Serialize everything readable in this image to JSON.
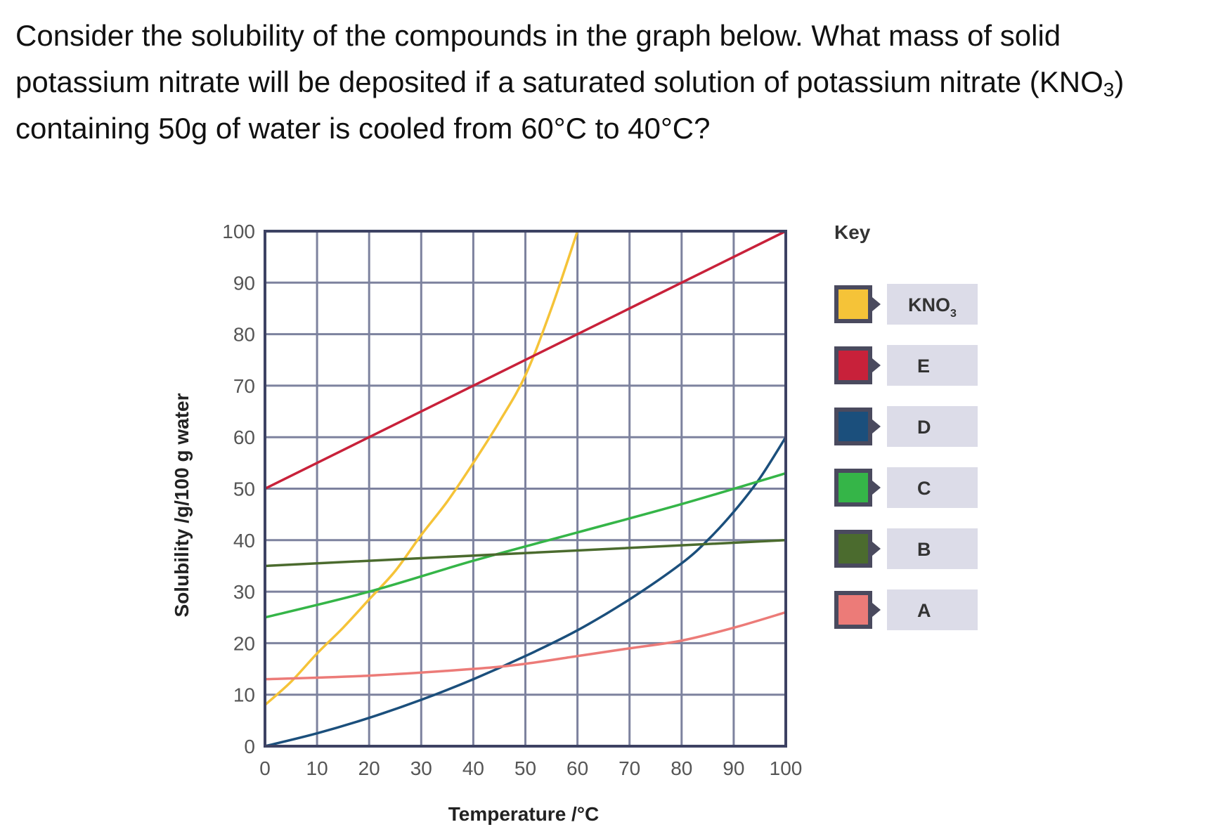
{
  "question": {
    "line1": "Consider the solubility of the compounds in the graph below. What mass of solid",
    "line2a": "potassium nitrate will be deposited if a saturated solution of potassium nitrate (KNO",
    "line2sub": "3",
    "line2b": ")",
    "line3": "containing 50g of water is cooled from 60°C to 40°C?"
  },
  "chart_data": {
    "type": "line",
    "xlabel": "Temperature /°C",
    "ylabel": "Solubility /g/100 g water",
    "xlim": [
      0,
      100
    ],
    "ylim": [
      0,
      100
    ],
    "xticks": [
      "0",
      "10",
      "20",
      "30",
      "40",
      "50",
      "60",
      "70",
      "80",
      "90",
      "100"
    ],
    "yticks": [
      "0",
      "10",
      "20",
      "30",
      "40",
      "50",
      "60",
      "70",
      "80",
      "90",
      "100"
    ],
    "grid": true,
    "legend_title": "Key",
    "legend_position": "right",
    "series": [
      {
        "name": "KNO3",
        "name_main": "KNO",
        "name_sub": "3",
        "color": "#f5c338",
        "points": [
          [
            0,
            8
          ],
          [
            5,
            12.5
          ],
          [
            10,
            18
          ],
          [
            15,
            23
          ],
          [
            20,
            28.5
          ],
          [
            25,
            34
          ],
          [
            30,
            41
          ],
          [
            35,
            47.5
          ],
          [
            40,
            55
          ],
          [
            45,
            63
          ],
          [
            50,
            72
          ],
          [
            55,
            85
          ],
          [
            60,
            100
          ]
        ]
      },
      {
        "name": "E",
        "color": "#c8213a",
        "points": [
          [
            0,
            50
          ],
          [
            100,
            100
          ]
        ]
      },
      {
        "name": "D",
        "color": "#1b4f7c",
        "points": [
          [
            0,
            0
          ],
          [
            10,
            2.5
          ],
          [
            20,
            5.5
          ],
          [
            30,
            9
          ],
          [
            40,
            13
          ],
          [
            50,
            17.5
          ],
          [
            60,
            22.5
          ],
          [
            70,
            28.5
          ],
          [
            80,
            35.5
          ],
          [
            85,
            40
          ],
          [
            90,
            45.5
          ],
          [
            95,
            52
          ],
          [
            100,
            60
          ]
        ]
      },
      {
        "name": "C",
        "color": "#35b548",
        "points": [
          [
            0,
            25
          ],
          [
            20,
            30
          ],
          [
            40,
            36
          ],
          [
            60,
            41.5
          ],
          [
            80,
            47
          ],
          [
            100,
            53
          ]
        ]
      },
      {
        "name": "B",
        "color": "#4b6b2e",
        "points": [
          [
            0,
            35
          ],
          [
            100,
            40
          ]
        ]
      },
      {
        "name": "A",
        "color": "#ec7b78",
        "points": [
          [
            0,
            13
          ],
          [
            20,
            13.7
          ],
          [
            40,
            15
          ],
          [
            50,
            16
          ],
          [
            60,
            17.5
          ],
          [
            70,
            19
          ],
          [
            80,
            20.5
          ],
          [
            90,
            23
          ],
          [
            100,
            26
          ]
        ]
      }
    ]
  },
  "colors": {
    "axis": "#3d4263",
    "grid": "#7d829e",
    "legend_label_bg": "#dcdce8",
    "legend_swatch_border": "#4a4a5e"
  }
}
